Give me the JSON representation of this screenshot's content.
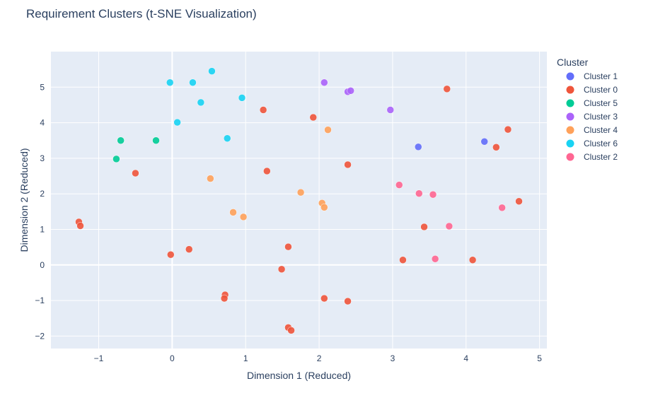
{
  "chart_data": {
    "type": "scatter",
    "title": "Requirement Clusters (t-SNE Visualization)",
    "xlabel": "Dimension 1 (Reduced)",
    "ylabel": "Dimension 2 (Reduced)",
    "xlim": [
      -1.65,
      5.1
    ],
    "ylim": [
      -2.35,
      6.0
    ],
    "xticks": [
      -1,
      0,
      1,
      2,
      3,
      4,
      5
    ],
    "xtick_labels": [
      "−1",
      "0",
      "1",
      "2",
      "3",
      "4",
      "5"
    ],
    "yticks": [
      -2,
      -1,
      0,
      1,
      2,
      3,
      4,
      5
    ],
    "ytick_labels": [
      "−2",
      "−1",
      "0",
      "1",
      "2",
      "3",
      "4",
      "5"
    ],
    "grid": true,
    "legend_title": "Cluster",
    "legend_position": "right",
    "series": [
      {
        "name": "Cluster 1",
        "color": "#636efa",
        "x": [
          3.35,
          4.25
        ],
        "y": [
          3.32,
          3.47
        ]
      },
      {
        "name": "Cluster 0",
        "color": "#ef553b",
        "x": [
          3.74,
          1.24,
          1.92,
          4.57,
          4.41,
          2.39,
          1.29,
          -0.5,
          4.72,
          3.43,
          -1.27,
          -1.25,
          1.58,
          -0.02,
          0.23,
          1.49,
          3.14,
          4.09,
          0.72,
          0.71,
          2.07,
          2.39,
          1.58,
          1.62
        ],
        "y": [
          4.95,
          4.36,
          4.15,
          3.81,
          3.31,
          2.82,
          2.64,
          2.58,
          1.79,
          1.07,
          1.21,
          1.1,
          0.51,
          0.29,
          0.44,
          -0.12,
          0.14,
          0.14,
          -0.84,
          -0.94,
          -0.94,
          -1.02,
          -1.76,
          -1.84
        ]
      },
      {
        "name": "Cluster 5",
        "color": "#00cc96",
        "x": [
          -0.7,
          -0.22,
          -0.76
        ],
        "y": [
          3.5,
          3.5,
          2.98
        ]
      },
      {
        "name": "Cluster 3",
        "color": "#ab63fa",
        "x": [
          2.07,
          2.39,
          2.43,
          2.97
        ],
        "y": [
          5.13,
          4.87,
          4.9,
          4.36
        ]
      },
      {
        "name": "Cluster 4",
        "color": "#ffa15a",
        "x": [
          2.12,
          0.52,
          1.75,
          2.04,
          2.07,
          0.83,
          0.97
        ],
        "y": [
          3.8,
          2.43,
          2.04,
          1.74,
          1.62,
          1.48,
          1.35
        ]
      },
      {
        "name": "Cluster 6",
        "color": "#19d3f3",
        "x": [
          0.54,
          -0.03,
          0.28,
          0.95,
          0.39,
          0.07,
          0.75
        ],
        "y": [
          5.45,
          5.13,
          5.13,
          4.7,
          4.57,
          4.01,
          3.56
        ]
      },
      {
        "name": "Cluster 2",
        "color": "#ff6692",
        "x": [
          3.09,
          3.36,
          3.55,
          4.49,
          3.77,
          3.58
        ],
        "y": [
          2.25,
          2.01,
          1.98,
          1.61,
          1.09,
          0.17
        ]
      }
    ]
  }
}
